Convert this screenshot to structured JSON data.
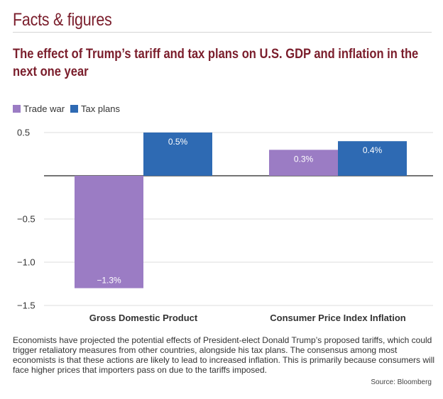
{
  "header": {
    "section_title": "Facts & figures",
    "chart_title": "The effect of Trump’s tariff and tax plans on U.S. GDP and inflation in the next one year"
  },
  "colors": {
    "trade_war": "#9b7cc4",
    "tax_plans": "#2e6ab3",
    "title": "#7a1d2b"
  },
  "chart_data": {
    "type": "bar",
    "title": "The effect of Trump’s tariff and tax plans on U.S. GDP and inflation in the next one year",
    "xlabel": "",
    "ylabel": "",
    "categories": [
      "Gross Domestic Product",
      "Consumer Price Index Inflation"
    ],
    "series": [
      {
        "name": "Trade war",
        "values": [
          -1.3,
          0.3
        ],
        "labels": [
          "−1.3%",
          "0.3%"
        ]
      },
      {
        "name": "Tax plans",
        "values": [
          0.5,
          0.4
        ],
        "labels": [
          "0.5%",
          "0.4%"
        ]
      }
    ],
    "ylim": [
      -1.5,
      0.5
    ],
    "yticks": [
      0.5,
      0,
      -0.5,
      -1.0,
      -1.5
    ],
    "ytick_labels": [
      "0.5",
      "",
      "−0.5",
      "−1.0",
      "−1.5"
    ],
    "grid": true,
    "legend": "top-left"
  },
  "footer": {
    "description": "Economists have projected the potential effects of President-elect Donald Trump’s proposed tariffs, which could trigger retaliatory measures from other countries, alongside his tax plans. The consensus among most economists is that these actions are likely to lead to increased inflation. This is primarily because consumers will face higher prices that importers pass on due to the tariffs imposed.",
    "source": "Source: Bloomberg"
  }
}
